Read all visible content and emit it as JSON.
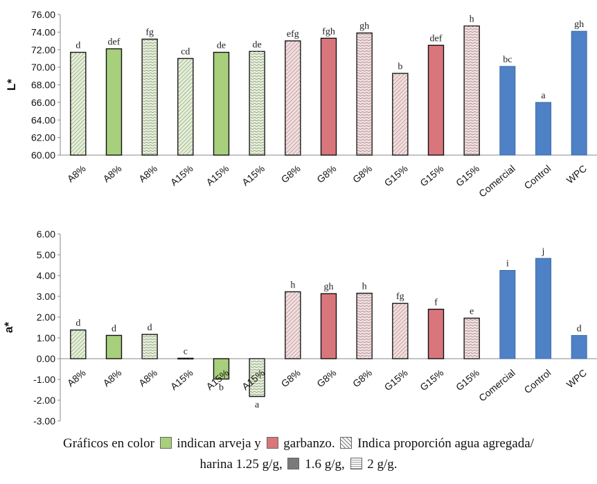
{
  "colors": {
    "green": "#a7cf7c",
    "green_light": "#e3f0d3",
    "red": "#d9767b",
    "red_light": "#f6dcdd",
    "blue": "#4f81c6",
    "axis": "#8a8a8a",
    "bar_outline": "#111111"
  },
  "chart_data": [
    {
      "type": "bar",
      "ylabel": "L*",
      "ylim": [
        60,
        76
      ],
      "ytick_step": 2,
      "ytick_labels": [
        "60.00",
        "62.00",
        "64.00",
        "66.00",
        "68.00",
        "70.00",
        "72.00",
        "74.00",
        "76.00"
      ],
      "grid": false,
      "categories": [
        "A8%",
        "A8%",
        "A8%",
        "A15%",
        "A15%",
        "A15%",
        "G8%",
        "G8%",
        "G8%",
        "G15%",
        "G15%",
        "G15%",
        "Comercial",
        "Control",
        "WPC"
      ],
      "values": [
        71.7,
        72.1,
        73.2,
        71.0,
        71.7,
        71.8,
        73.0,
        73.3,
        73.9,
        69.3,
        72.5,
        74.7,
        70.1,
        66.0,
        74.1
      ],
      "letters": [
        "d",
        "def",
        "fg",
        "cd",
        "de",
        "de",
        "efg",
        "fgh",
        "gh",
        "b",
        "def",
        "h",
        "bc",
        "a",
        "gh"
      ],
      "fills": [
        "green_light",
        "green",
        "green_light",
        "green_light",
        "green",
        "green_light",
        "red_light",
        "red",
        "red_light",
        "red_light",
        "red",
        "red_light",
        "blue",
        "blue",
        "blue"
      ],
      "patterns": [
        "hatch",
        "solid",
        "dots",
        "hatch",
        "solid",
        "dots",
        "hatch",
        "solid",
        "dots",
        "hatch",
        "solid",
        "dots",
        "solid",
        "solid",
        "solid"
      ]
    },
    {
      "type": "bar",
      "ylabel": "a*",
      "ylim": [
        -3,
        6
      ],
      "ytick_step": 1,
      "ytick_labels": [
        "-3.00",
        "-2.00",
        "-1.00",
        "0.00",
        "1.00",
        "2.00",
        "3.00",
        "4.00",
        "5.00",
        "6.00"
      ],
      "grid": false,
      "categories": [
        "A8%",
        "A8%",
        "A8%",
        "A15%",
        "A15%",
        "A15%",
        "G8%",
        "G8%",
        "G8%",
        "G15%",
        "G15%",
        "G15%",
        "Comercial",
        "Control",
        "WPC"
      ],
      "values": [
        1.38,
        1.12,
        1.17,
        0.02,
        -0.98,
        -1.82,
        3.22,
        3.13,
        3.15,
        2.66,
        2.38,
        1.95,
        4.25,
        4.83,
        1.12
      ],
      "letters": [
        "d",
        "d",
        "d",
        "c",
        "b",
        "a",
        "h",
        "gh",
        "h",
        "fg",
        "f",
        "e",
        "i",
        "j",
        "d"
      ],
      "fills": [
        "green_light",
        "green",
        "green_light",
        "green_light",
        "green",
        "green_light",
        "red_light",
        "red",
        "red_light",
        "red_light",
        "red",
        "red_light",
        "blue",
        "blue",
        "blue"
      ],
      "patterns": [
        "hatch",
        "solid",
        "dots",
        "hatch",
        "solid",
        "dots",
        "hatch",
        "solid",
        "dots",
        "hatch",
        "solid",
        "dots",
        "solid",
        "solid",
        "solid"
      ]
    }
  ],
  "legend": {
    "part1": "Gráficos en color",
    "part2": "indican arveja y",
    "part3": "garbanzo.",
    "part4": "Indica proporción agua agregada/",
    "part5": "harina 1.25 g/g,",
    "part6": "1.6 g/g,",
    "part7": "2 g/g."
  }
}
